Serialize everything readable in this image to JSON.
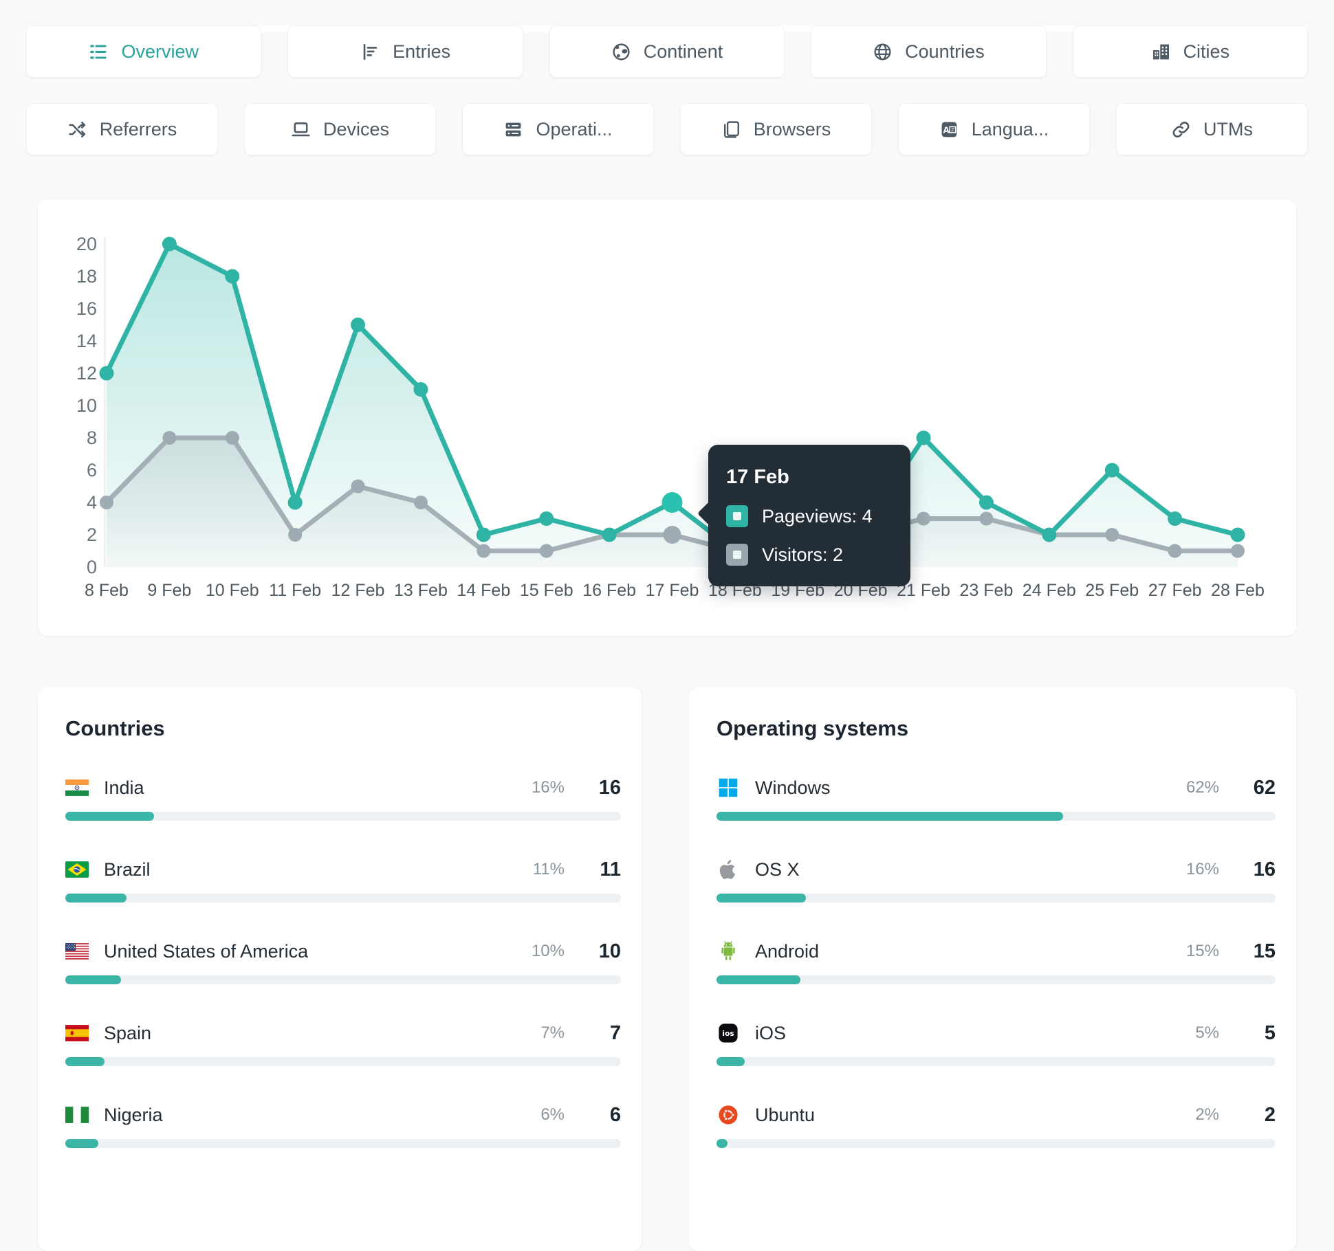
{
  "accent": "#2eb3a4",
  "nav": {
    "row1": [
      {
        "label": "Overview",
        "icon": "list",
        "active": true
      },
      {
        "label": "Entries",
        "icon": "chart",
        "active": false
      },
      {
        "label": "Continent",
        "icon": "earth",
        "active": false
      },
      {
        "label": "Countries",
        "icon": "globe",
        "active": false
      },
      {
        "label": "Cities",
        "icon": "city",
        "active": false
      }
    ],
    "row2": [
      {
        "label": "Referrers",
        "icon": "shuffle",
        "active": false
      },
      {
        "label": "Devices",
        "icon": "laptop",
        "active": false
      },
      {
        "label": "Operati...",
        "icon": "server",
        "active": false
      },
      {
        "label": "Browsers",
        "icon": "browser",
        "active": false
      },
      {
        "label": "Langua...",
        "icon": "translate",
        "active": false
      },
      {
        "label": "UTMs",
        "icon": "link",
        "active": false
      }
    ]
  },
  "chart_data": {
    "type": "line",
    "title": "",
    "xlabel": "",
    "ylabel": "",
    "categories": [
      "8 Feb",
      "9 Feb",
      "10 Feb",
      "11 Feb",
      "12 Feb",
      "13 Feb",
      "14 Feb",
      "15 Feb",
      "16 Feb",
      "17 Feb",
      "18 Feb",
      "19 Feb",
      "20 Feb",
      "21 Feb",
      "23 Feb",
      "24 Feb",
      "25 Feb",
      "27 Feb",
      "28 Feb"
    ],
    "series": [
      {
        "name": "Pageviews",
        "color": "#2eb3a4",
        "values": [
          12,
          20,
          18,
          4,
          15,
          11,
          2,
          3,
          2,
          4,
          1,
          1,
          2,
          8,
          4,
          2,
          6,
          3,
          2
        ]
      },
      {
        "name": "Visitors",
        "color": "#a4b0b6",
        "values": [
          4,
          8,
          8,
          2,
          5,
          4,
          1,
          1,
          2,
          2,
          1,
          1,
          2,
          3,
          3,
          2,
          2,
          1,
          1
        ]
      }
    ],
    "ylim": [
      0,
      20
    ],
    "yticks": [
      0,
      2,
      4,
      6,
      8,
      10,
      12,
      14,
      16,
      18,
      20
    ],
    "grid": false,
    "legend_position": "none",
    "highlight_index": 9,
    "area_fill": true
  },
  "tooltip": {
    "date": "17 Feb",
    "rows": [
      {
        "label": "Pageviews",
        "value": "4",
        "color": "#2eb3a4"
      },
      {
        "label": "Visitors",
        "value": "2",
        "color": "#9aa6ad"
      }
    ]
  },
  "panels": [
    {
      "title": "Countries",
      "items": [
        {
          "name": "India",
          "icon": "india",
          "percent": "16%",
          "count": "16",
          "pct": 16
        },
        {
          "name": "Brazil",
          "icon": "brazil",
          "percent": "11%",
          "count": "11",
          "pct": 11
        },
        {
          "name": "United States of America",
          "icon": "usa",
          "percent": "10%",
          "count": "10",
          "pct": 10
        },
        {
          "name": "Spain",
          "icon": "spain",
          "percent": "7%",
          "count": "7",
          "pct": 7
        },
        {
          "name": "Nigeria",
          "icon": "nigeria",
          "percent": "6%",
          "count": "6",
          "pct": 6
        }
      ]
    },
    {
      "title": "Operating systems",
      "items": [
        {
          "name": "Windows",
          "icon": "windows",
          "percent": "62%",
          "count": "62",
          "pct": 62
        },
        {
          "name": "OS X",
          "icon": "apple",
          "percent": "16%",
          "count": "16",
          "pct": 16
        },
        {
          "name": "Android",
          "icon": "android",
          "percent": "15%",
          "count": "15",
          "pct": 15
        },
        {
          "name": "iOS",
          "icon": "ios",
          "percent": "5%",
          "count": "5",
          "pct": 5
        },
        {
          "name": "Ubuntu",
          "icon": "ubuntu",
          "percent": "2%",
          "count": "2",
          "pct": 2
        }
      ]
    }
  ],
  "bar_track_color": "#eef1f3",
  "bar_fill_color": "#3ab5a6"
}
